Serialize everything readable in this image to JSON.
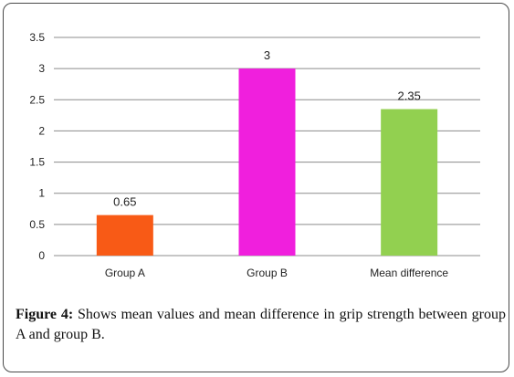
{
  "chart_data": {
    "type": "bar",
    "categories": [
      "Group A",
      "Group B",
      "Mean difference"
    ],
    "values": [
      0.65,
      3,
      2.35
    ],
    "data_labels": [
      "0.65",
      "3",
      "2.35"
    ],
    "colors": [
      "#f85a16",
      "#f01fdd",
      "#92d050"
    ],
    "y_ticks": [
      "0",
      "0.5",
      "1",
      "1.5",
      "2",
      "2.5",
      "3",
      "3.5"
    ],
    "ylim": [
      0,
      3.5
    ],
    "grid": true,
    "gridline_color": "#8c8c8c",
    "title": "",
    "xlabel": "",
    "ylabel": ""
  },
  "caption": {
    "label": "Figure 4:",
    "text": " Shows mean values and mean difference in grip strength between group A and group B."
  }
}
